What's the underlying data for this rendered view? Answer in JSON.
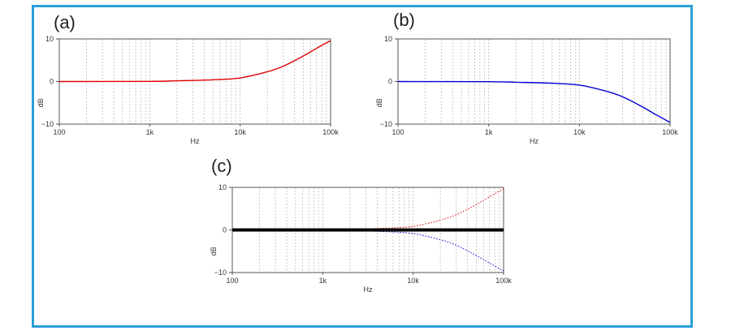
{
  "colors": {
    "frame": "#2a9fd8",
    "grid": "#bdbdbd",
    "red": "#e00000",
    "blue": "#0000d0",
    "black": "#000000"
  },
  "chart_data": [
    {
      "type": "line",
      "panel_label": "(a)",
      "xlabel": "Hz",
      "ylabel": "dB",
      "xscale": "log",
      "xlim": [
        100,
        100000
      ],
      "ylim": [
        -10,
        10
      ],
      "x_tick_labels": [
        "100",
        "1k",
        "10k",
        "100k"
      ],
      "y_tick_labels": [
        "10",
        "0",
        "−10"
      ],
      "grid": true,
      "series": [
        {
          "color": "#e00000",
          "style": "solid",
          "x": [
            100,
            1000,
            2000,
            5000,
            10000,
            20000,
            30000,
            50000,
            70000,
            100000
          ],
          "y": [
            0.0,
            0.04,
            0.17,
            0.4,
            0.85,
            2.3,
            3.6,
            6.0,
            7.8,
            9.6
          ]
        }
      ]
    },
    {
      "type": "line",
      "panel_label": "(b)",
      "xlabel": "Hz",
      "ylabel": "dB",
      "xscale": "log",
      "xlim": [
        100,
        100000
      ],
      "ylim": [
        -10,
        10
      ],
      "x_tick_labels": [
        "100",
        "1k",
        "10k",
        "100k"
      ],
      "y_tick_labels": [
        "10",
        "0",
        "−10"
      ],
      "grid": true,
      "series": [
        {
          "color": "#0000d0",
          "style": "solid",
          "x": [
            100,
            1000,
            2000,
            5000,
            10000,
            20000,
            30000,
            50000,
            70000,
            100000
          ],
          "y": [
            0.0,
            -0.04,
            -0.17,
            -0.4,
            -0.85,
            -2.3,
            -3.6,
            -6.0,
            -7.8,
            -9.6
          ]
        }
      ]
    },
    {
      "type": "line",
      "panel_label": "(c)",
      "xlabel": "Hz",
      "ylabel": "dB",
      "xscale": "log",
      "xlim": [
        100,
        100000
      ],
      "ylim": [
        -10,
        10
      ],
      "x_tick_labels": [
        "100",
        "1k",
        "10k",
        "100k"
      ],
      "y_tick_labels": [
        "10",
        "0",
        "−10"
      ],
      "grid": true,
      "series": [
        {
          "color": "#e00000",
          "style": "dotted",
          "x": [
            100,
            1000,
            2000,
            5000,
            10000,
            20000,
            30000,
            50000,
            70000,
            100000
          ],
          "y": [
            0.0,
            0.04,
            0.17,
            0.4,
            0.85,
            2.3,
            3.6,
            6.0,
            7.8,
            9.6
          ]
        },
        {
          "color": "#0000d0",
          "style": "dotted",
          "x": [
            100,
            1000,
            2000,
            5000,
            10000,
            20000,
            30000,
            50000,
            70000,
            100000
          ],
          "y": [
            0.0,
            -0.04,
            -0.17,
            -0.4,
            -0.85,
            -2.3,
            -3.6,
            -6.0,
            -7.8,
            -9.6
          ]
        },
        {
          "color": "#000000",
          "style": "thick",
          "x": [
            100,
            100000
          ],
          "y": [
            0.0,
            0.0
          ]
        }
      ]
    }
  ]
}
